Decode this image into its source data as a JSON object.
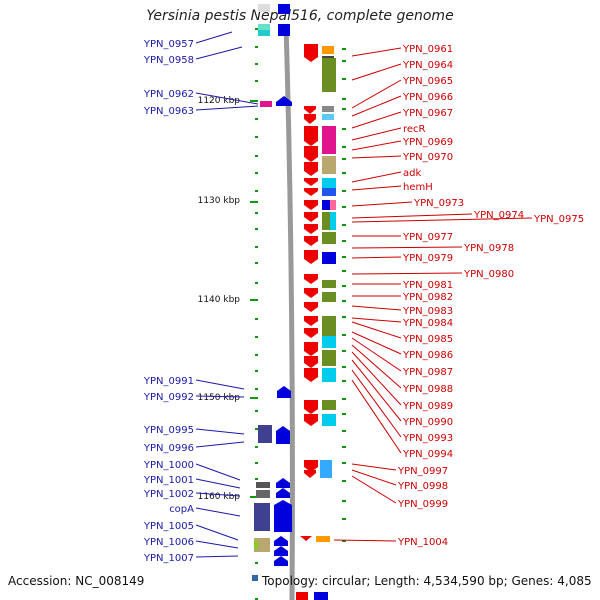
{
  "title": "Yersinia pestis Nepal516, complete genome",
  "accession": "Accession: NC_008149",
  "topology": "Topology: circular; Length: 4,534,590 bp; Genes: 4,085",
  "scale_labels": [
    "1120 kbp",
    "1130 kbp",
    "1140 kbp",
    "1150 kbp",
    "1160 kbp"
  ],
  "colors": {
    "forward": "#0000dd",
    "reverse": "#ee0000",
    "forward_label": "#1a1aa8",
    "reverse_label": "#cc0000",
    "backbone": "#999999",
    "tick": "#119911"
  },
  "left_genes": [
    {
      "label": "YPN_0957"
    },
    {
      "label": "YPN_0958"
    },
    {
      "label": "YPN_0962"
    },
    {
      "label": "YPN_0963"
    },
    {
      "label": "YPN_0991"
    },
    {
      "label": "YPN_0992"
    },
    {
      "label": "YPN_0995"
    },
    {
      "label": "YPN_0996"
    },
    {
      "label": "YPN_1000"
    },
    {
      "label": "YPN_1001"
    },
    {
      "label": "YPN_1002"
    },
    {
      "label": "copA"
    },
    {
      "label": "YPN_1005"
    },
    {
      "label": "YPN_1006"
    },
    {
      "label": "YPN_1007"
    }
  ],
  "right_genes": [
    {
      "label": "YPN_0961"
    },
    {
      "label": "YPN_0964"
    },
    {
      "label": "YPN_0965"
    },
    {
      "label": "YPN_0966"
    },
    {
      "label": "YPN_0967"
    },
    {
      "label": "recR"
    },
    {
      "label": "YPN_0969"
    },
    {
      "label": "YPN_0970"
    },
    {
      "label": "adk"
    },
    {
      "label": "hemH"
    },
    {
      "label": "YPN_0973"
    },
    {
      "label": "YPN_0974"
    },
    {
      "label": "YPN_0975"
    },
    {
      "label": "YPN_0977"
    },
    {
      "label": "YPN_0978"
    },
    {
      "label": "YPN_0979"
    },
    {
      "label": "YPN_0980"
    },
    {
      "label": "YPN_0981"
    },
    {
      "label": "YPN_0982"
    },
    {
      "label": "YPN_0983"
    },
    {
      "label": "YPN_0984"
    },
    {
      "label": "YPN_0985"
    },
    {
      "label": "YPN_0986"
    },
    {
      "label": "YPN_0987"
    },
    {
      "label": "YPN_0988"
    },
    {
      "label": "YPN_0989"
    },
    {
      "label": "YPN_0990"
    },
    {
      "label": "YPN_0993"
    },
    {
      "label": "YPN_0994"
    },
    {
      "label": "YPN_0997"
    },
    {
      "label": "YPN_0998"
    },
    {
      "label": "YPN_0999"
    },
    {
      "label": "YPN_1004"
    }
  ]
}
